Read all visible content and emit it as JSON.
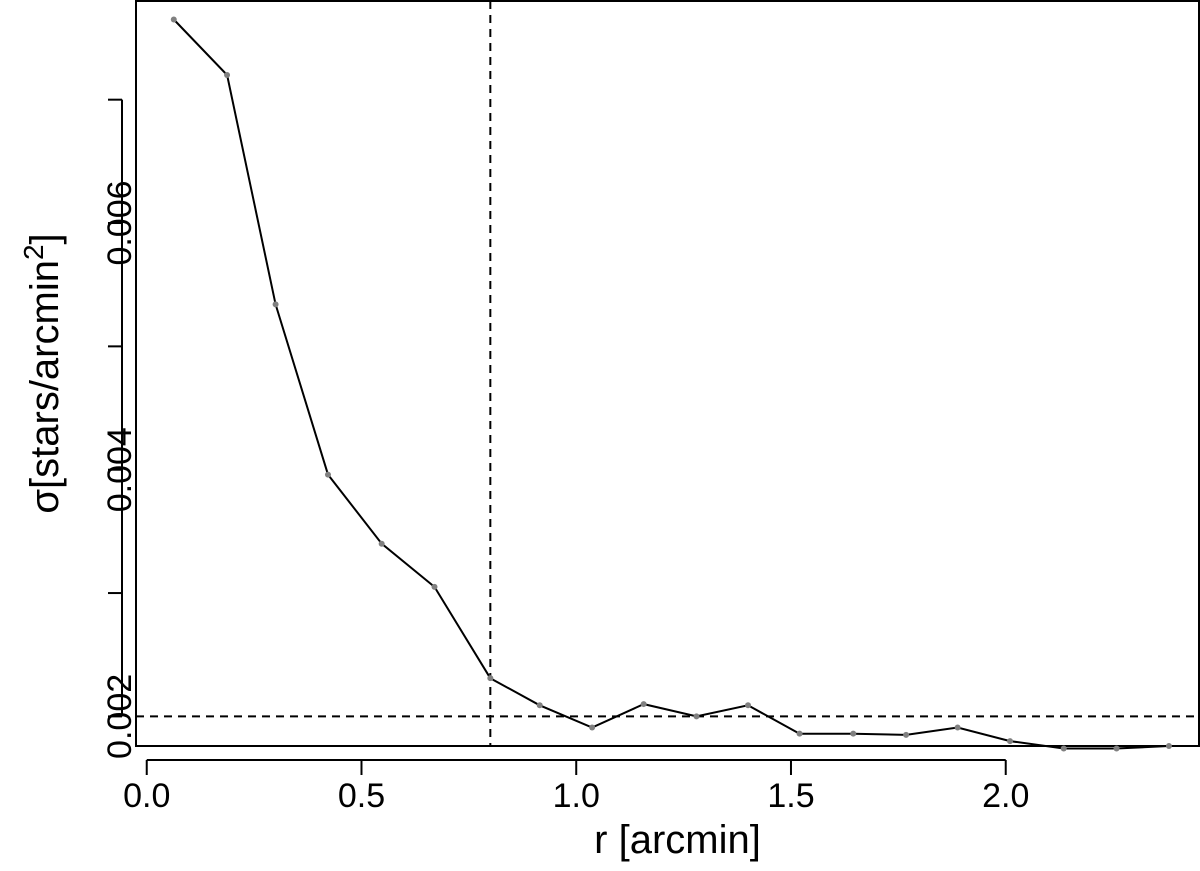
{
  "chart_data": {
    "type": "line",
    "title": "",
    "xlabel": "r [arcmin]",
    "ylabel": {
      "text": "σ[stars/arcmin",
      "superscript": "2",
      "closing": "]"
    },
    "xlim": [
      -0.025,
      2.45
    ],
    "ylim": [
      0.00176,
      0.0078
    ],
    "x_ticks": [
      {
        "value": 0.0,
        "label": "0.0"
      },
      {
        "value": 0.5,
        "label": "0.5"
      },
      {
        "value": 1.0,
        "label": "1.0"
      },
      {
        "value": 1.5,
        "label": "1.5"
      },
      {
        "value": 2.0,
        "label": "2.0"
      }
    ],
    "y_ticks": [
      {
        "value": 0.002,
        "label": "0.002"
      },
      {
        "value": 0.003,
        "label": ""
      },
      {
        "value": 0.004,
        "label": "0.004"
      },
      {
        "value": 0.005,
        "label": ""
      },
      {
        "value": 0.006,
        "label": "0.006"
      },
      {
        "value": 0.007,
        "label": ""
      }
    ],
    "series": [
      {
        "x": [
          0.063,
          0.187,
          0.3,
          0.422,
          0.547,
          0.67,
          0.8,
          0.915,
          1.037,
          1.157,
          1.28,
          1.4,
          1.52,
          1.645,
          1.768,
          1.888,
          2.01,
          2.135,
          2.258,
          2.38
        ],
        "y": [
          0.00765,
          0.0072,
          0.00534,
          0.00396,
          0.0034,
          0.00305,
          0.00231,
          0.00209,
          0.00191,
          0.0021,
          0.002,
          0.00209,
          0.00186,
          0.00186,
          0.00185,
          0.00191,
          0.0018,
          0.00174,
          0.00174,
          0.00176
        ],
        "color": "#000000",
        "marker_color": "#808080"
      }
    ],
    "reference_lines": {
      "vertical_x": 0.8,
      "horizontal_y": 0.002,
      "style": "dashed"
    },
    "grid": false,
    "legend": "none"
  }
}
